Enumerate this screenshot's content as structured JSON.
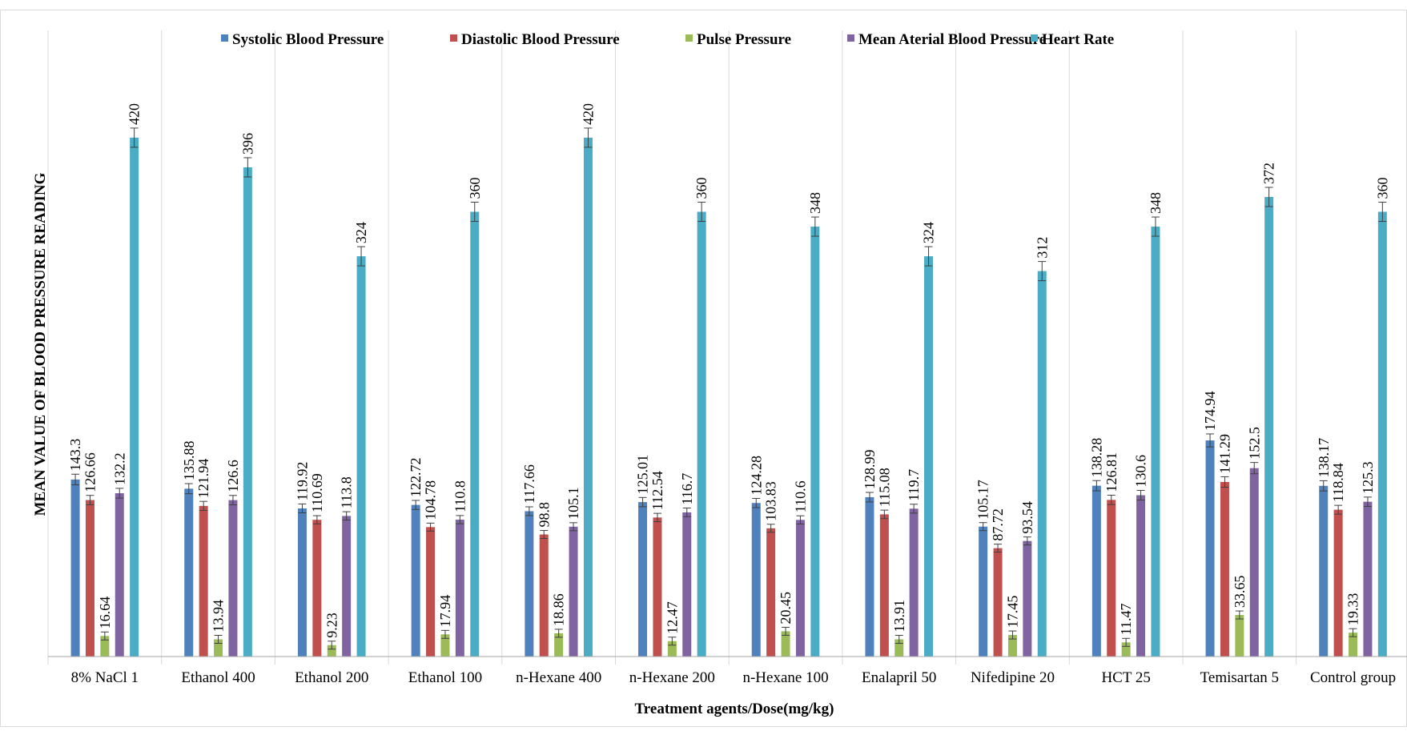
{
  "chart_data": {
    "type": "bar",
    "title": "",
    "xlabel": "Treatment agents/Dose(mg/kg)",
    "ylabel": "MEAN VALUE OF BLOOD PRESSURE READING",
    "ylim": [
      0,
      450
    ],
    "grid": "vertical separators between groups",
    "legend_position": "top",
    "error_bars": true,
    "categories": [
      "8% NaCl 1",
      "Ethanol 400",
      "Ethanol 200",
      "Ethanol 100",
      "n-Hexane 400",
      "n-Hexane 200",
      "n-Hexane 100",
      "Enalapril 50",
      "Nifedipine 20",
      "HCT  25",
      "Temisartan 5",
      "Control group"
    ],
    "series": [
      {
        "name": "Systolic Blood Pressure",
        "color": "#4F81BD",
        "values": [
          143.3,
          135.88,
          119.92,
          122.72,
          117.66,
          125.01,
          124.28,
          128.99,
          105.17,
          138.28,
          174.94,
          138.17
        ],
        "labels": [
          "143.3",
          "135.88",
          "119.92",
          "122.72",
          "117.66",
          "125.01",
          "124.28",
          "128.99",
          "105.17",
          "138.28",
          "174.94",
          "138.17"
        ]
      },
      {
        "name": "Diastolic Blood Pressure",
        "color": "#C0504D",
        "values": [
          126.66,
          121.94,
          110.69,
          104.78,
          98.8,
          112.54,
          103.83,
          115.08,
          87.72,
          126.81,
          141.29,
          118.84
        ],
        "labels": [
          "126.66",
          "121.94",
          "110.69",
          "104.78",
          "98.8",
          "112.54",
          "103.83",
          "115.08",
          "87.72",
          "126.81",
          "141.29",
          "118.84"
        ]
      },
      {
        "name": "Pulse Pressure",
        "color": "#9BBB59",
        "values": [
          16.64,
          13.94,
          9.23,
          17.94,
          18.86,
          12.47,
          20.45,
          13.91,
          17.45,
          11.47,
          33.65,
          19.33
        ],
        "labels": [
          "16.64",
          "13.94",
          "9.23",
          "17.94",
          "18.86",
          "12.47",
          "20.45",
          "13.91",
          "17.45",
          "11.47",
          "33.65",
          "19.33"
        ]
      },
      {
        "name": "Mean Aterial Blood Pressure",
        "color": "#8064A2",
        "values": [
          132.2,
          126.6,
          113.8,
          110.8,
          105.1,
          116.7,
          110.6,
          119.7,
          93.54,
          130.6,
          152.5,
          125.3
        ],
        "labels": [
          "132.2",
          "126.6",
          "113.8",
          "110.8",
          "105.1",
          "116.7",
          "110.6",
          "119.7",
          "93.54",
          "130.6",
          "152.5",
          "125.3"
        ]
      },
      {
        "name": "Heart Rate",
        "color": "#4BACC6",
        "values": [
          420,
          396,
          324,
          360,
          420,
          360,
          348,
          324,
          312,
          348,
          372,
          360
        ],
        "labels": [
          "420",
          "396",
          "324",
          "360",
          "420",
          "360",
          "348",
          "324",
          "312",
          "348",
          "372",
          "360"
        ]
      }
    ]
  }
}
